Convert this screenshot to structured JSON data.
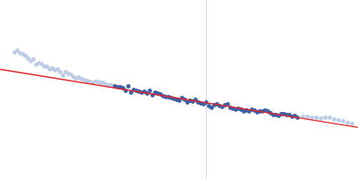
{
  "chart_data": {
    "type": "scatter",
    "xlim": [
      0,
      400
    ],
    "ylim": [
      0,
      200
    ],
    "tick_labels": false,
    "grid": false,
    "vertical_line": {
      "x": 230,
      "color": "#cdd5e6"
    },
    "series": [
      {
        "type": "scatter",
        "marker": "circle",
        "color": "#bccbe6",
        "x": [
          16,
          19,
          22,
          25,
          28,
          31,
          34,
          37,
          40,
          43,
          46,
          49,
          52,
          55,
          58,
          61,
          64,
          67,
          70,
          73,
          76,
          79,
          82,
          85,
          88,
          91,
          94,
          97,
          100,
          103,
          106,
          109,
          112,
          115,
          118,
          121,
          124
        ],
        "values": [
          142,
          144,
          141,
          140,
          138,
          135,
          132,
          134,
          128,
          130,
          129,
          126,
          126,
          123,
          124,
          122,
          123,
          120,
          116,
          120,
          118,
          117,
          114,
          113,
          114,
          112,
          111,
          110,
          109,
          108,
          109,
          109,
          108,
          108,
          106,
          105,
          105
        ]
      },
      {
        "type": "scatter",
        "marker": "circle",
        "color": "#3d5fa6",
        "x": [
          128,
          131,
          134,
          137,
          140,
          143,
          146,
          149,
          152,
          155,
          158,
          161,
          164,
          167,
          170,
          173,
          176,
          179,
          182,
          185,
          188,
          191,
          194,
          197,
          200,
          203,
          206,
          209,
          212,
          215,
          218,
          221,
          224,
          227,
          230,
          233,
          236,
          239,
          242,
          245,
          248,
          251,
          254,
          257,
          260,
          263,
          266,
          269,
          272,
          275,
          278,
          281,
          284,
          287,
          290,
          293,
          296,
          299,
          302,
          305,
          308,
          311,
          314,
          317,
          320,
          323,
          326,
          329,
          332
        ],
        "values": [
          104,
          103,
          103,
          102,
          99,
          104,
          97,
          100,
          99,
          98,
          97,
          98,
          96,
          99,
          94,
          97,
          96,
          95,
          93,
          92,
          92,
          91,
          90,
          89,
          88,
          91,
          89,
          86,
          88,
          87,
          89,
          86,
          85,
          84,
          86,
          82,
          80,
          83,
          84,
          82,
          81,
          83,
          84,
          80,
          79,
          78,
          79,
          78,
          76,
          77,
          76,
          78,
          77,
          75,
          76,
          76,
          77,
          76,
          74,
          72,
          72,
          71,
          73,
          73,
          72,
          72,
          70,
          71,
          69
        ]
      },
      {
        "type": "scatter",
        "marker": "circle",
        "color": "#bccbe6",
        "x": [
          338,
          343,
          348,
          353,
          358,
          363,
          368,
          373,
          378,
          383,
          388,
          393
        ],
        "values": [
          70,
          70,
          69,
          69,
          68,
          69,
          69,
          67,
          66,
          65,
          63,
          62
        ]
      },
      {
        "type": "line",
        "line_style": "solid",
        "color": "#e0282a",
        "x": [
          0,
          400
        ],
        "values": [
          123,
          58
        ]
      }
    ]
  }
}
